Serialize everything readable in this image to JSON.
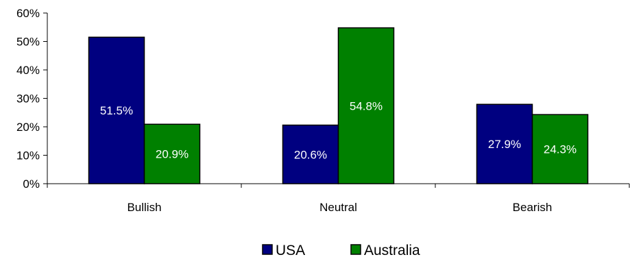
{
  "chart_data": {
    "type": "bar",
    "title": "",
    "xlabel": "",
    "ylabel": "",
    "categories": [
      "Bullish",
      "Neutral",
      "Bearish"
    ],
    "series": [
      {
        "name": "USA",
        "values": [
          51.5,
          20.6,
          27.9
        ],
        "labels": [
          "51.5%",
          "20.6%",
          "27.9%"
        ],
        "color": "#000080"
      },
      {
        "name": "Australia",
        "values": [
          20.9,
          54.8,
          24.3
        ],
        "labels": [
          "20.9%",
          "54.8%",
          "24.3%"
        ],
        "color": "#008000"
      }
    ],
    "ylim": [
      0,
      60
    ],
    "yticks": [
      0,
      10,
      20,
      30,
      40,
      50,
      60
    ],
    "ytick_labels": [
      "0%",
      "10%",
      "20%",
      "30%",
      "40%",
      "50%",
      "60%"
    ],
    "grid": false,
    "legend_position": "bottom"
  }
}
